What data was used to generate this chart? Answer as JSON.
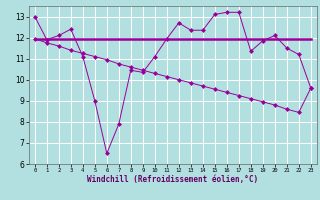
{
  "background_color": "#b2e0e0",
  "line_color": "#990099",
  "x_values": [
    0,
    1,
    2,
    3,
    4,
    5,
    6,
    7,
    8,
    9,
    10,
    11,
    12,
    13,
    14,
    15,
    16,
    17,
    18,
    19,
    20,
    21,
    22,
    23
  ],
  "series1": [
    13.0,
    11.9,
    12.1,
    12.4,
    11.1,
    9.0,
    6.5,
    7.9,
    10.45,
    10.35,
    11.1,
    11.95,
    12.7,
    12.35,
    12.35,
    13.1,
    13.2,
    13.2,
    11.35,
    11.85,
    12.1,
    11.5,
    11.2,
    9.6
  ],
  "series2_x": [
    0,
    23
  ],
  "series2_y": [
    11.95,
    11.95
  ],
  "series3": [
    11.95,
    11.75,
    11.6,
    11.4,
    11.25,
    11.1,
    10.95,
    10.75,
    10.6,
    10.45,
    10.3,
    10.15,
    10.0,
    9.85,
    9.7,
    9.55,
    9.4,
    9.25,
    9.1,
    8.95,
    8.8,
    8.6,
    8.45,
    9.6
  ],
  "xlabel": "Windchill (Refroidissement éolien,°C)",
  "ylim": [
    6,
    13.5
  ],
  "xlim": [
    -0.5,
    23.5
  ],
  "yticks": [
    6,
    7,
    8,
    9,
    10,
    11,
    12,
    13
  ],
  "xticks": [
    0,
    1,
    2,
    3,
    4,
    5,
    6,
    7,
    8,
    9,
    10,
    11,
    12,
    13,
    14,
    15,
    16,
    17,
    18,
    19,
    20,
    21,
    22,
    23
  ]
}
